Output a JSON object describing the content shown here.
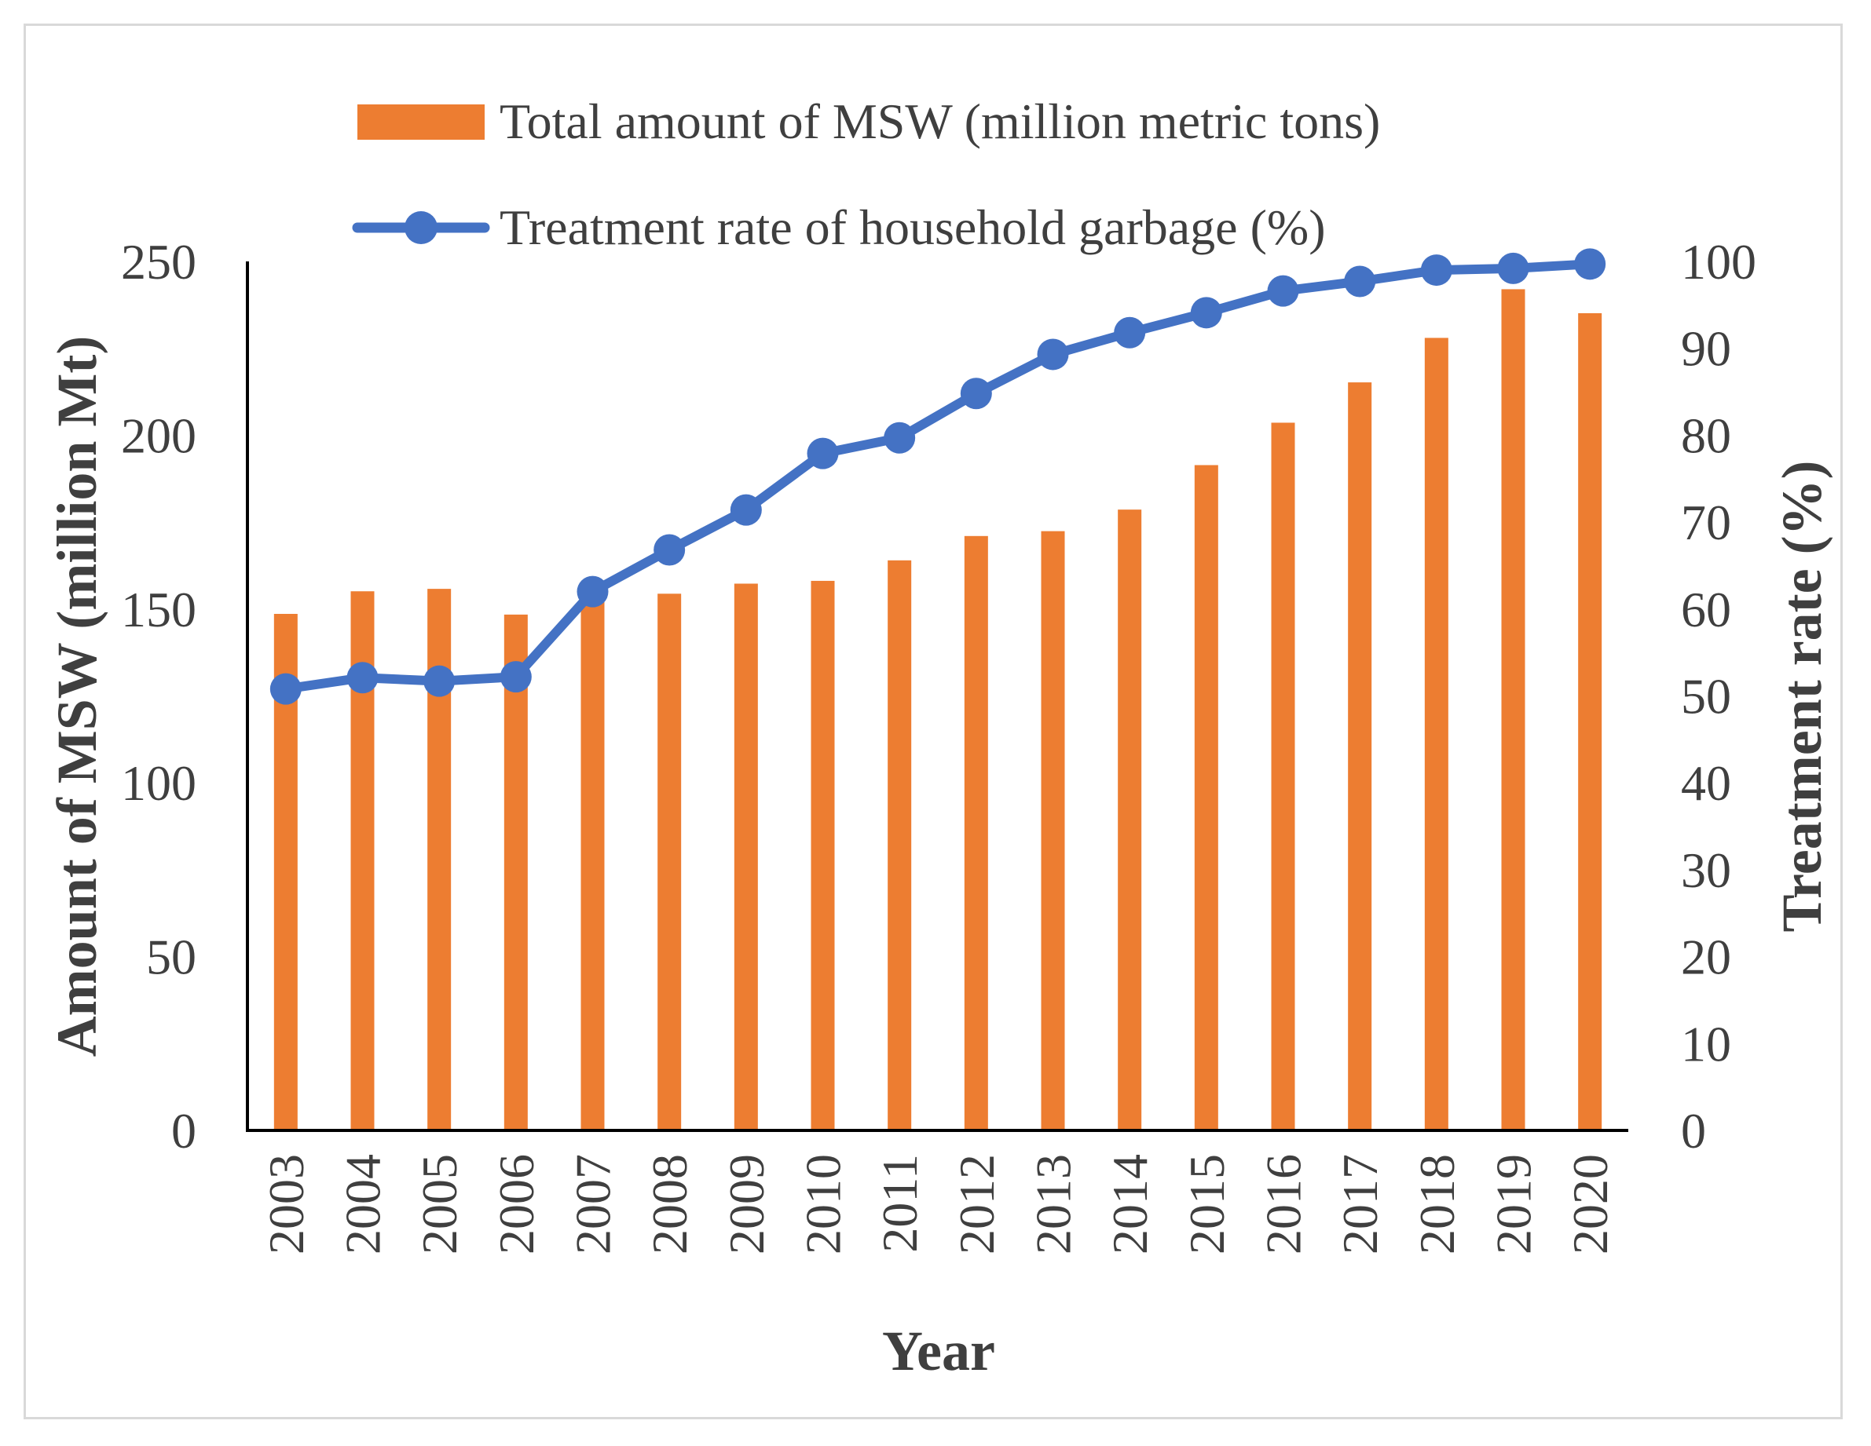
{
  "chart_data": {
    "type": "bar+line",
    "categories": [
      "2003",
      "2004",
      "2005",
      "2006",
      "2007",
      "2008",
      "2009",
      "2010",
      "2011",
      "2012",
      "2013",
      "2014",
      "2015",
      "2016",
      "2017",
      "2018",
      "2019",
      "2020"
    ],
    "series": [
      {
        "name": "Total amount of MSW (million metric tons)",
        "type": "bar",
        "axis": "left",
        "color": "#ed7d31",
        "values": [
          148.6,
          155.1,
          155.8,
          148.4,
          152.1,
          154.4,
          157.3,
          158.1,
          164.0,
          171.0,
          172.4,
          178.6,
          191.4,
          203.6,
          215.2,
          228.0,
          242.0,
          235.1
        ]
      },
      {
        "name": "Treatment rate of household garbage (%)",
        "type": "line",
        "axis": "right",
        "color": "#4472c4",
        "values": [
          50.8,
          52.1,
          51.7,
          52.2,
          62.0,
          66.8,
          71.4,
          77.9,
          79.7,
          84.8,
          89.3,
          91.8,
          94.1,
          96.6,
          97.7,
          99.0,
          99.2,
          99.7
        ]
      }
    ],
    "xlabel": "Year",
    "ylabel": "Amount of MSW (million Mt)",
    "y2label": "Treatment rate (%)",
    "ylim": [
      0,
      250
    ],
    "y2lim": [
      0,
      100
    ],
    "yticks": [
      "0",
      "50",
      "100",
      "150",
      "200",
      "250"
    ],
    "y2ticks": [
      "0",
      "10",
      "20",
      "30",
      "40",
      "50",
      "60",
      "70",
      "80",
      "90",
      "100"
    ],
    "legend": "top",
    "grid": false
  }
}
